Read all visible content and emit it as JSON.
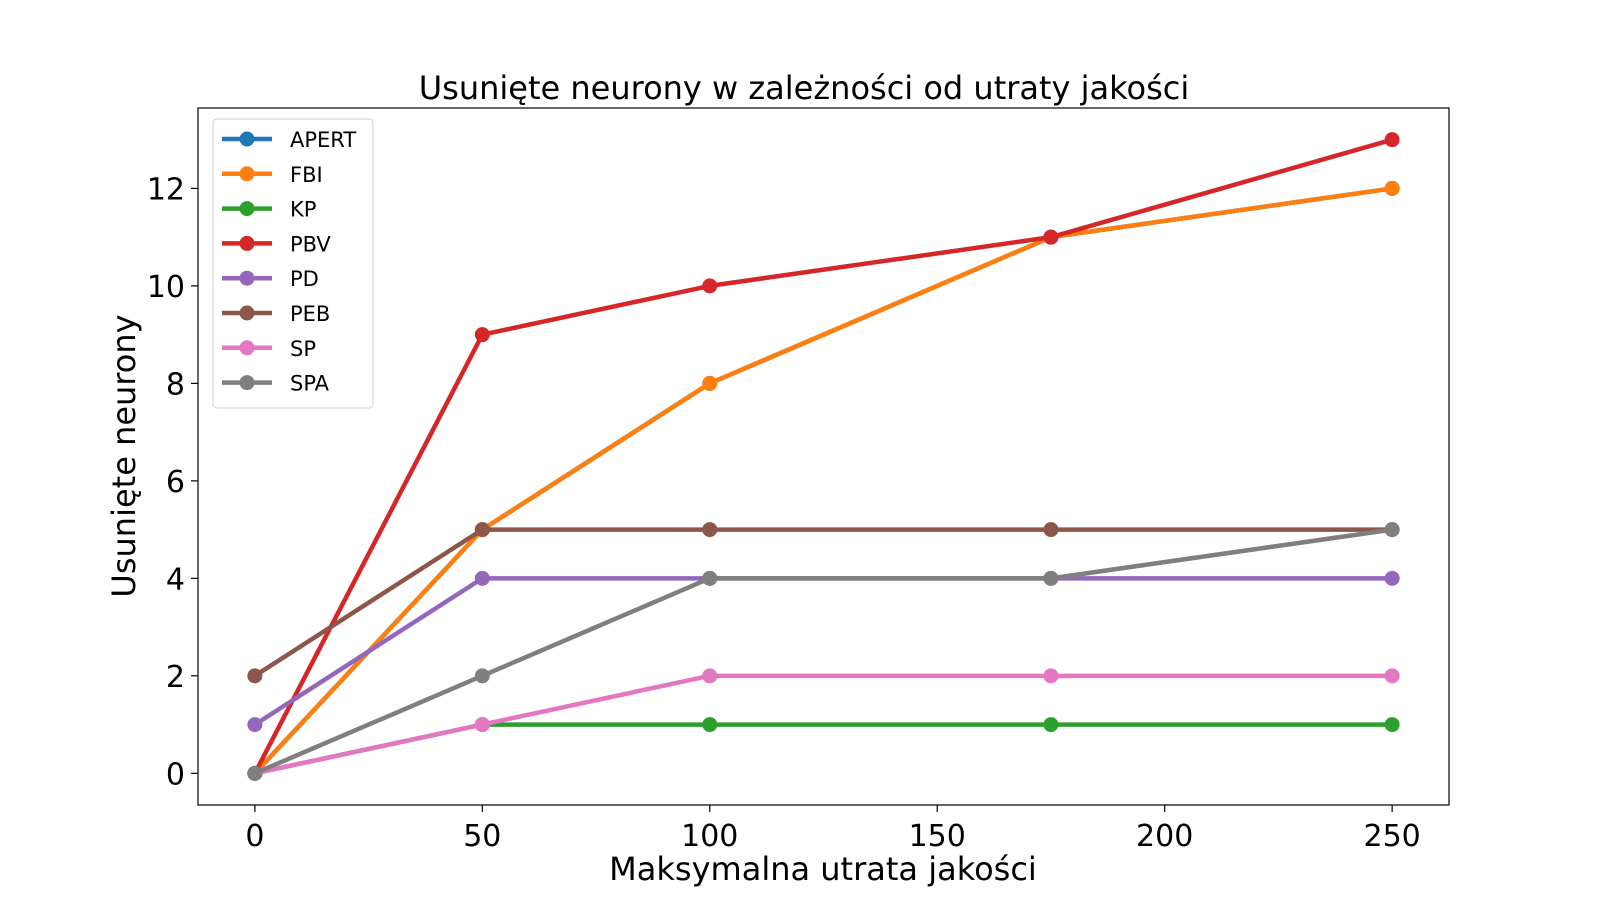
{
  "chart_data": {
    "type": "line",
    "title": "Usunięte neurony w zależności od utraty jakości",
    "xlabel": "Maksymalna utrata jakości",
    "ylabel": "Usunięte neurony",
    "x": [
      0,
      50,
      100,
      175,
      250
    ],
    "xlim": [
      -12.5,
      262.5
    ],
    "ylim": [
      -0.65,
      13.65
    ],
    "xticks": [
      0,
      50,
      100,
      150,
      200,
      250
    ],
    "xtick_labels": [
      "0",
      "50",
      "100",
      "150",
      "200",
      "250"
    ],
    "yticks": [
      0,
      2,
      4,
      6,
      8,
      10,
      12
    ],
    "ytick_labels": [
      "0",
      "2",
      "4",
      "6",
      "8",
      "10",
      "12"
    ],
    "grid": false,
    "legend_position": "top-left",
    "series": [
      {
        "name": "APERT",
        "color": "#1f77b4",
        "values": [
          0,
          5,
          8,
          11,
          12
        ]
      },
      {
        "name": "FBI",
        "color": "#ff7f0e",
        "values": [
          0,
          5,
          8,
          11,
          12
        ]
      },
      {
        "name": "KP",
        "color": "#2ca02c",
        "values": [
          0,
          1,
          1,
          1,
          1
        ]
      },
      {
        "name": "PBV",
        "color": "#d62728",
        "values": [
          0,
          9,
          10,
          11,
          13
        ]
      },
      {
        "name": "PD",
        "color": "#9467bd",
        "values": [
          1,
          4,
          4,
          4,
          4
        ]
      },
      {
        "name": "PEB",
        "color": "#8c564b",
        "values": [
          2,
          5,
          5,
          5,
          5
        ]
      },
      {
        "name": "SP",
        "color": "#e377c2",
        "values": [
          0,
          1,
          2,
          2,
          2
        ]
      },
      {
        "name": "SPA",
        "color": "#7f7f7f",
        "values": [
          0,
          2,
          4,
          4,
          5
        ]
      }
    ]
  }
}
